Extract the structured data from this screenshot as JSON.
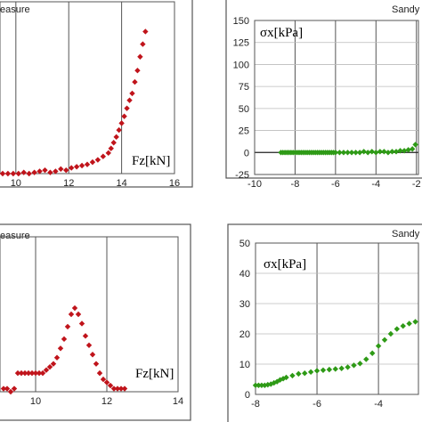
{
  "chart_data": [
    {
      "type": "scatter",
      "title": "",
      "corner_tag": "easure",
      "xlabel": "Fz[kN]",
      "ylabel": "",
      "xlim": [
        9.4,
        16
      ],
      "ylim": [
        0,
        150
      ],
      "xticks": [
        10,
        12,
        14,
        16
      ],
      "yticks": [],
      "grid": true,
      "colors": {
        "marker": "#c0141b"
      },
      "series": [
        {
          "name": "",
          "marker": "diamond",
          "x": [
            9.5,
            9.7,
            9.9,
            10.1,
            10.3,
            10.5,
            10.7,
            10.9,
            11.1,
            11.3,
            11.5,
            11.7,
            11.9,
            12.1,
            12.3,
            12.5,
            12.7,
            12.9,
            13.1,
            13.3,
            13.5,
            13.6,
            13.7,
            13.8,
            13.9,
            14.0,
            14.1,
            14.2,
            14.3,
            14.4,
            14.5,
            14.6,
            14.7,
            14.8,
            14.9
          ],
          "y": [
            0,
            0,
            0,
            0,
            1,
            0,
            1,
            2,
            3,
            1,
            2,
            4,
            3,
            5,
            6,
            7,
            8,
            10,
            12,
            15,
            18,
            22,
            27,
            32,
            38,
            44,
            50,
            57,
            64,
            70,
            80,
            90,
            102,
            113,
            124
          ]
        }
      ]
    },
    {
      "type": "scatter",
      "title": "",
      "corner_tag": "Sandy",
      "xlabel": "",
      "ylabel": "σx[kPa]",
      "xlim": [
        -10,
        -1.9
      ],
      "ylim": [
        -25,
        150
      ],
      "xticks": [
        -10,
        -8,
        -6,
        -4,
        -2
      ],
      "yticks": [
        -25,
        0,
        25,
        50,
        75,
        100,
        125,
        150
      ],
      "grid": true,
      "colors": {
        "marker": "#2e9a16"
      },
      "series": [
        {
          "name": "",
          "marker": "diamond",
          "x": [
            -8.7,
            -8.6,
            -8.5,
            -8.4,
            -8.3,
            -8.2,
            -8.1,
            -8.0,
            -7.9,
            -7.8,
            -7.7,
            -7.6,
            -7.5,
            -7.4,
            -7.3,
            -7.2,
            -7.1,
            -7.0,
            -6.9,
            -6.8,
            -6.7,
            -6.6,
            -6.5,
            -6.4,
            -6.3,
            -6.2,
            -6.1,
            -6.0,
            -5.8,
            -5.6,
            -5.4,
            -5.2,
            -5.0,
            -4.8,
            -4.6,
            -4.4,
            -4.2,
            -4.0,
            -3.8,
            -3.6,
            -3.4,
            -3.2,
            -3.0,
            -2.8,
            -2.6,
            -2.4,
            -2.2,
            -2.05
          ],
          "y": [
            0,
            0,
            0,
            0,
            0,
            0,
            0,
            0,
            0,
            0,
            0,
            0,
            0,
            0,
            0,
            0,
            0,
            0,
            0,
            0,
            0,
            0,
            0,
            0,
            0,
            0,
            0,
            0,
            0,
            0,
            0,
            0,
            0,
            0,
            1,
            0,
            1,
            0,
            1,
            1,
            0,
            1,
            1,
            2,
            2,
            3,
            4,
            9
          ]
        }
      ]
    },
    {
      "type": "scatter",
      "title": "",
      "corner_tag": "easure",
      "xlabel": "Fz[kN]",
      "ylabel": "",
      "xlim": [
        9.0,
        14
      ],
      "ylim": [
        0,
        50
      ],
      "xticks": [
        10,
        12,
        14
      ],
      "yticks": [],
      "grid": true,
      "colors": {
        "marker": "#c0141b"
      },
      "series": [
        {
          "name": "",
          "marker": "diamond",
          "x": [
            9.1,
            9.2,
            9.3,
            9.4,
            9.5,
            9.6,
            9.7,
            9.8,
            9.9,
            10.0,
            10.1,
            10.2,
            10.3,
            10.4,
            10.5,
            10.6,
            10.7,
            10.8,
            10.9,
            11.0,
            11.1,
            11.2,
            11.3,
            11.4,
            11.5,
            11.6,
            11.7,
            11.8,
            11.9,
            12.0,
            12.1,
            12.2,
            12.3,
            12.4,
            12.5
          ],
          "y": [
            1,
            1,
            0,
            1,
            6,
            6,
            6,
            6,
            6,
            6,
            6,
            6,
            7,
            8,
            9,
            11,
            14,
            17,
            21,
            25,
            27,
            25,
            22,
            18,
            15,
            12,
            9,
            6,
            4,
            3,
            2,
            1,
            1,
            1,
            1
          ]
        }
      ]
    },
    {
      "type": "scatter",
      "title": "",
      "corner_tag": "Sandy",
      "xlabel": "",
      "ylabel": "σx[kPa]",
      "xlim": [
        -8,
        -2.7
      ],
      "ylim": [
        0,
        50
      ],
      "xticks": [
        -8,
        -6,
        -4
      ],
      "yticks": [
        0,
        10,
        20,
        30,
        40,
        50
      ],
      "grid": true,
      "colors": {
        "marker": "#2e9a16"
      },
      "series": [
        {
          "name": "",
          "marker": "diamond",
          "x": [
            -8.0,
            -7.9,
            -7.8,
            -7.7,
            -7.6,
            -7.5,
            -7.4,
            -7.3,
            -7.2,
            -7.1,
            -7.0,
            -6.8,
            -6.6,
            -6.4,
            -6.2,
            -6.0,
            -5.8,
            -5.6,
            -5.4,
            -5.2,
            -5.0,
            -4.8,
            -4.6,
            -4.4,
            -4.2,
            -4.0,
            -3.8,
            -3.6,
            -3.4,
            -3.2,
            -3.0,
            -2.8
          ],
          "y": [
            3,
            3,
            3,
            3,
            3.2,
            3.4,
            3.8,
            4.2,
            4.8,
            5.2,
            5.6,
            6.2,
            6.8,
            7,
            7.4,
            7.8,
            8,
            8.2,
            8.4,
            8.6,
            9,
            9.6,
            10.2,
            11.6,
            13.6,
            16,
            18,
            20,
            21.6,
            22.6,
            23.4,
            24
          ]
        }
      ]
    }
  ]
}
